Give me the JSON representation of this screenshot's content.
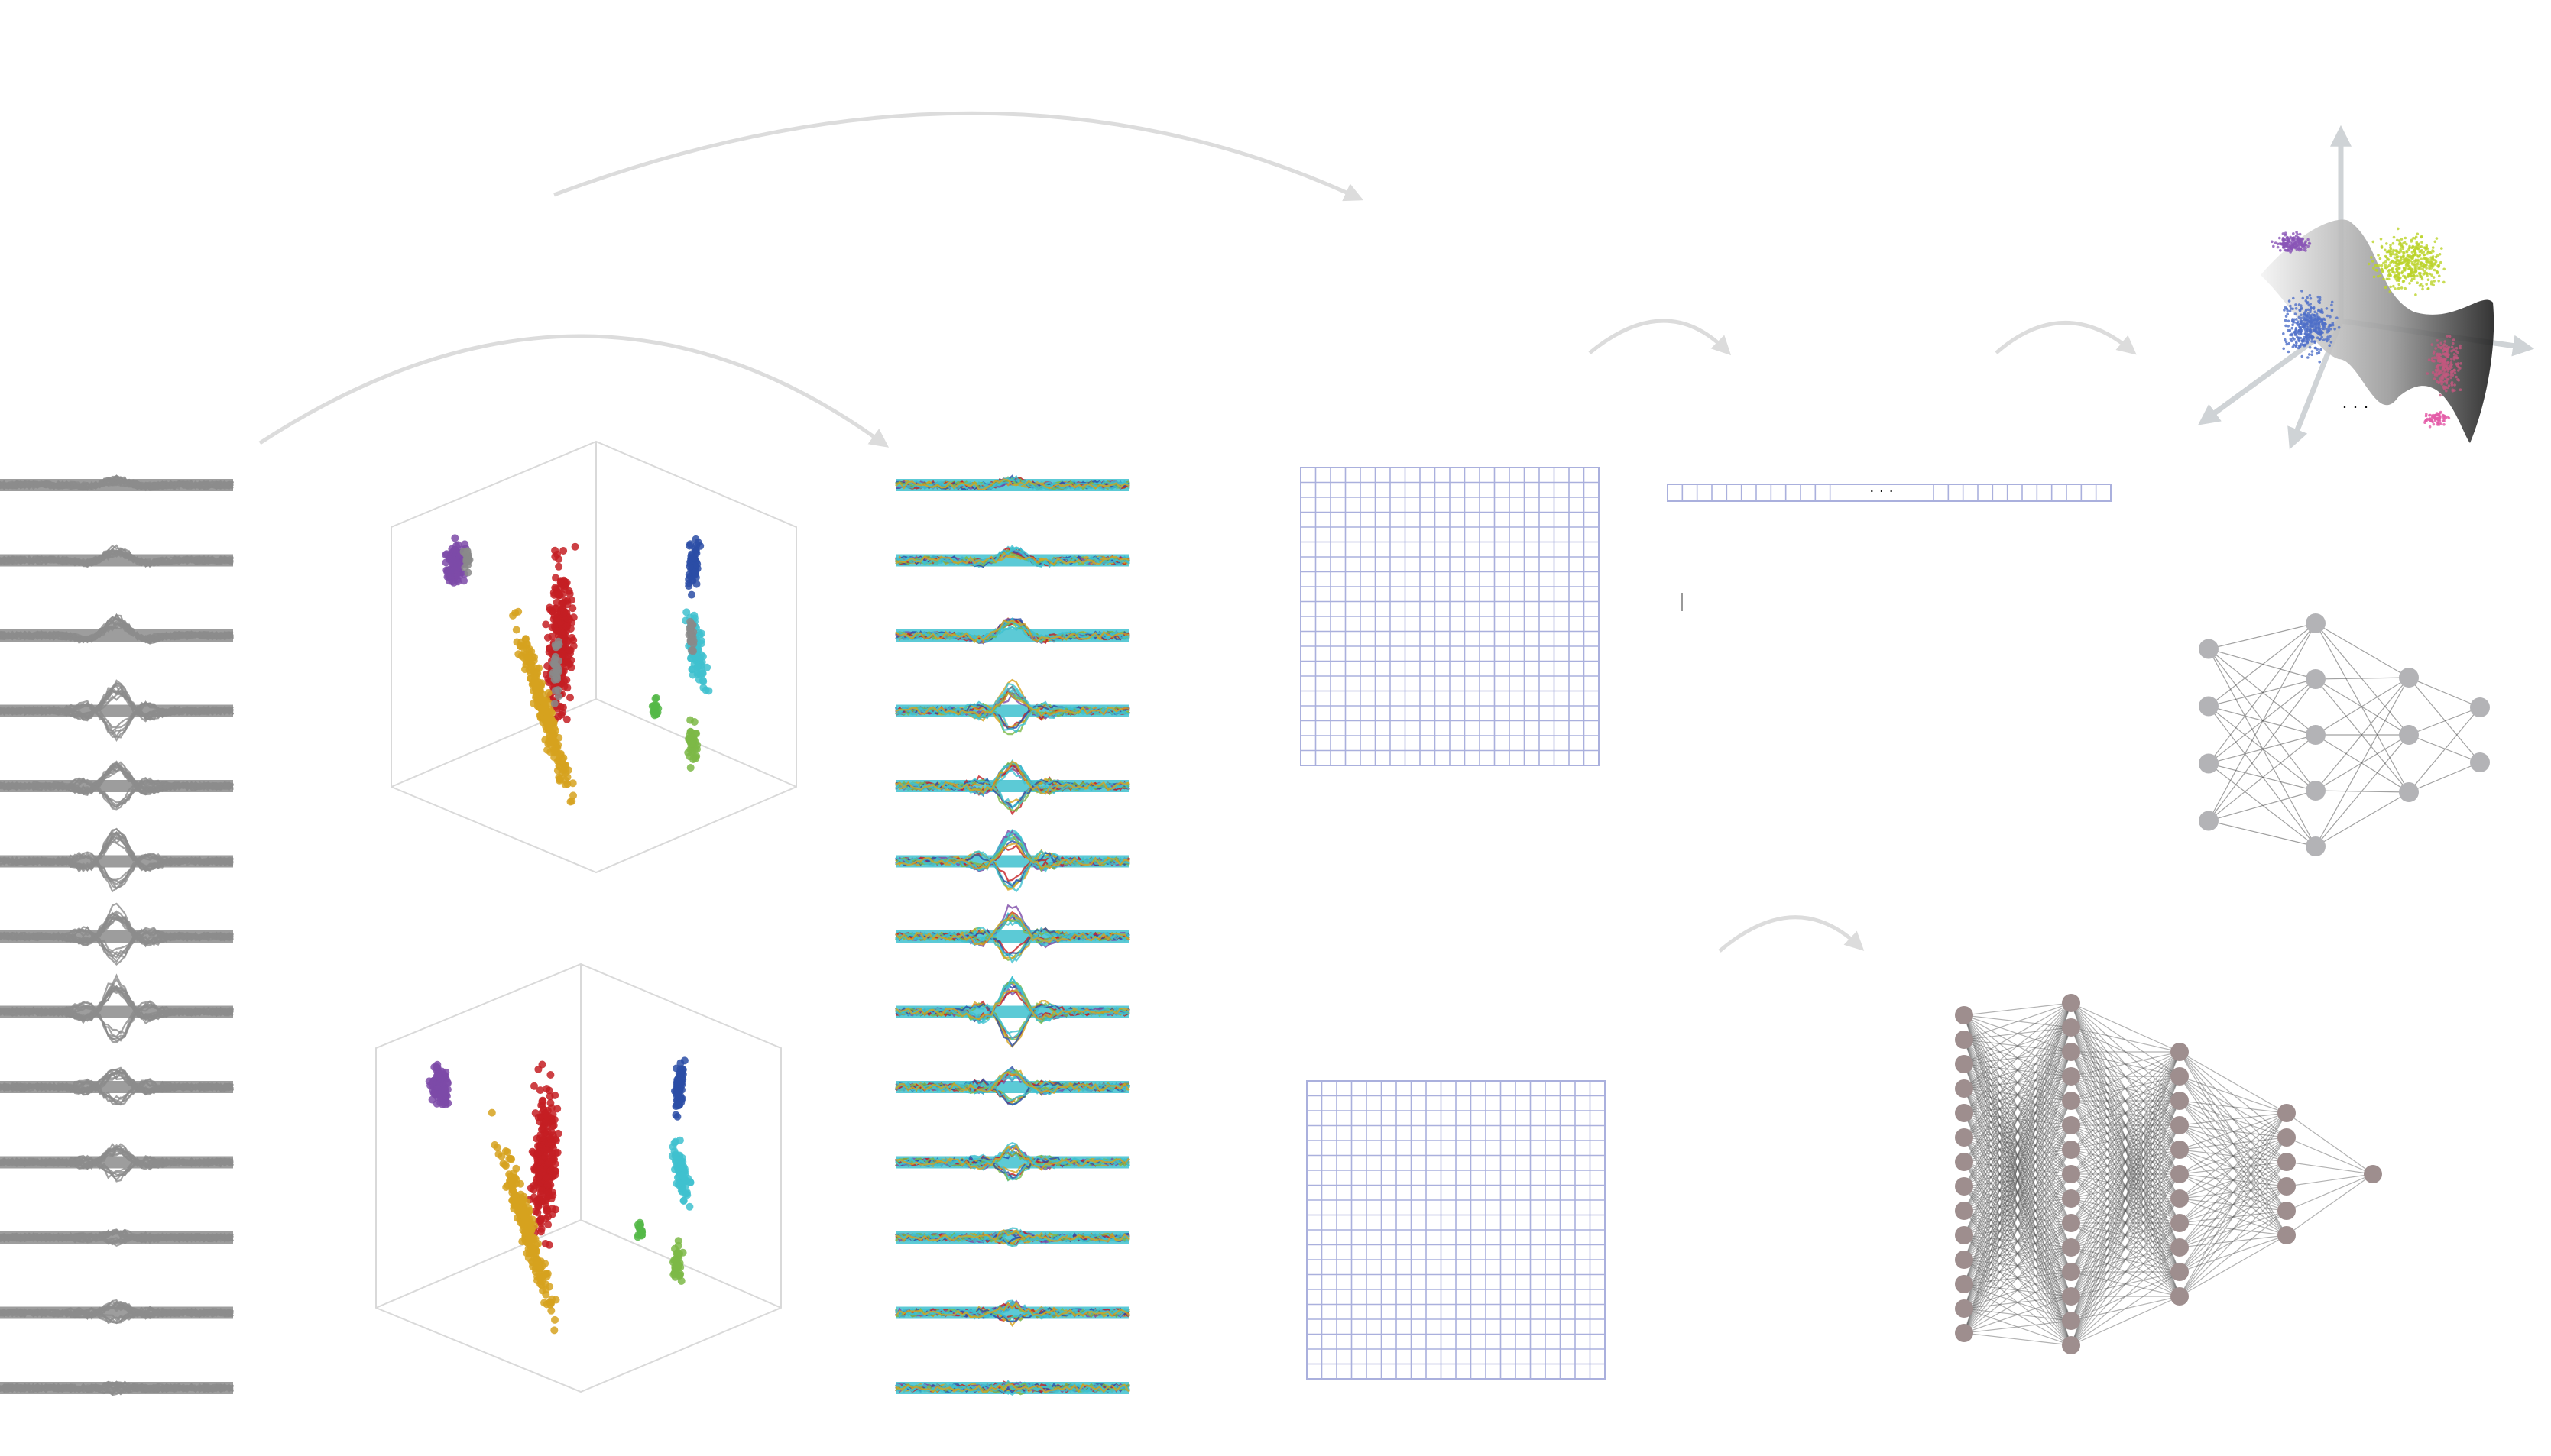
{
  "colors": {
    "raw_wave": "#8c8c8c",
    "arrow": "#dcdcdc",
    "grid": "#aab0dd",
    "box": "#d9d9d9",
    "node_gray": "#b3b3b6",
    "node_brown": "#9e8e8e",
    "edge": "#555555",
    "clusters": {
      "purple": "#7d4aa8",
      "red": "#c41e23",
      "gold": "#d6a21f",
      "navy": "#2b4da6",
      "cyan": "#3fc1cf",
      "green": "#55b848",
      "lime": "#7cb947",
      "gray": "#8a8a8a"
    }
  },
  "diagram": {
    "raw_channel_count": 13,
    "sorted_channel_count": 13,
    "matrix_grid_size": 20,
    "vector_cells": 30,
    "top_net_layers": [
      4,
      5,
      3,
      2
    ],
    "bottom_net_layers": [
      14,
      15,
      11,
      6,
      1
    ],
    "ellipsis_vector": ". . .",
    "ellipsis_embedding": ". . ."
  }
}
